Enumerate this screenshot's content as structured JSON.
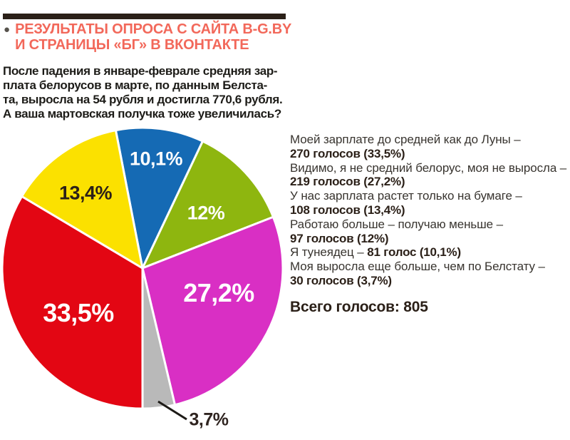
{
  "colors": {
    "top_rule": "#2b2018",
    "headline": "#f2685a",
    "bullet": "#56524c",
    "body_text": "#1d1c18",
    "legend_text": "#38342f",
    "legend_votes": "#2b2018",
    "leader_line": "#1d1a16"
  },
  "header": {
    "bullet": "●",
    "line1": "РЕЗУЛЬТАТЫ ОПРОСА С САЙТА B-G.BY",
    "line2": "И СТРАНИЦЫ «БГ» В ВКОНТАКТЕ"
  },
  "intro": {
    "lines": [
      "После падения в январе-феврале средняя зар-",
      "плата белорусов в марте, по данным Белста-",
      "та, выросла на 54 рубля и достигла 770,6 рубля.",
      "А ваша мартовская получка тоже увеличилась?"
    ]
  },
  "legend": {
    "entries": [
      {
        "question": "Моей зарплате до средней как до Луны –",
        "votes_label": "270 голосов (33,5%)",
        "inline": false
      },
      {
        "question": "Видимо, я не средний белорус, моя не выросла –",
        "votes_label": "219 голосов (27,2%)",
        "inline": false
      },
      {
        "question": "У нас зарплата растет только на бумаге –",
        "votes_label": "108 голосов (13,4%)",
        "inline": false
      },
      {
        "question": "Работаю больше – получаю меньше –",
        "votes_label": "97 голосов (12%)",
        "inline": false
      },
      {
        "question": "Я тунеядец – ",
        "votes_label": "81 голос (10,1%)",
        "inline": true
      },
      {
        "question": "Моя выросла еще больше, чем по Белстату –",
        "votes_label": "30 голосов (3,7%)",
        "inline": false
      }
    ],
    "total": "Всего голосов: 805"
  },
  "chart_data": {
    "type": "pie",
    "start_angle_deg": -11,
    "direction": "clockwise",
    "total_votes": 805,
    "slices": [
      {
        "answer": "Я тунеядец",
        "percent": 10.1,
        "votes": 81,
        "display_label": "10,1%",
        "color": "#156ab4",
        "label_color": "#ffffff"
      },
      {
        "answer": "Работаю больше – получаю меньше",
        "percent": 12,
        "votes": 97,
        "display_label": "12%",
        "color": "#8eb60f",
        "label_color": "#ffffff"
      },
      {
        "answer": "Видимо, я не средний белорус, моя не выросла",
        "percent": 27.2,
        "votes": 219,
        "display_label": "27,2%",
        "color": "#d92fc4",
        "label_color": "#ffffff"
      },
      {
        "answer": "Моя выросла еще больше, чем по Белстату",
        "percent": 3.7,
        "votes": 30,
        "display_label": "3,7%",
        "color": "#b9b9b9",
        "label_color": "#2f2420"
      },
      {
        "answer": "Моей зарплате до средней как до Луны",
        "percent": 33.5,
        "votes": 270,
        "display_label": "33,5%",
        "color": "#e30613",
        "label_color": "#ffffff"
      },
      {
        "answer": "У нас зарплата растет только на бумаге",
        "percent": 13.4,
        "votes": 108,
        "display_label": "13,4%",
        "color": "#fbe100",
        "label_color": "#2b2018"
      }
    ]
  }
}
